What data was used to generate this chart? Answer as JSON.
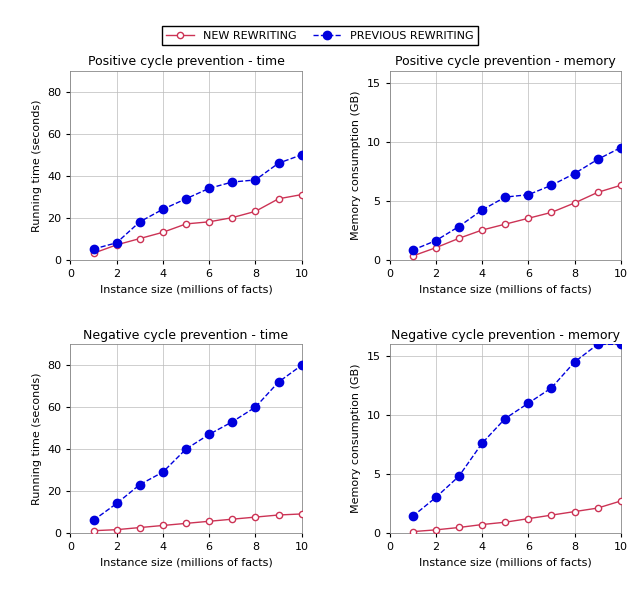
{
  "x": [
    1,
    2,
    3,
    4,
    5,
    6,
    7,
    8,
    9,
    10
  ],
  "pos_time_new": [
    3,
    7,
    10,
    13,
    17,
    18,
    20,
    23,
    29,
    31
  ],
  "pos_time_prev": [
    5,
    8,
    18,
    24,
    29,
    34,
    37,
    38,
    46,
    50
  ],
  "pos_mem_new": [
    0.3,
    1.0,
    1.8,
    2.5,
    3.0,
    3.5,
    4.0,
    4.8,
    5.7,
    6.3
  ],
  "pos_mem_prev": [
    0.8,
    1.6,
    2.8,
    4.2,
    5.3,
    5.5,
    6.3,
    7.3,
    8.5,
    9.5
  ],
  "neg_time_new": [
    1,
    1.5,
    2.5,
    3.5,
    4.5,
    5.5,
    6.5,
    7.5,
    8.5,
    9.0
  ],
  "neg_time_prev": [
    6,
    14,
    23,
    29,
    40,
    47,
    53,
    60,
    72,
    80
  ],
  "neg_mem_new": [
    0.1,
    0.25,
    0.45,
    0.7,
    0.9,
    1.2,
    1.5,
    1.8,
    2.1,
    2.7
  ],
  "neg_mem_prev": [
    1.4,
    3.0,
    4.8,
    7.6,
    9.7,
    11.0,
    12.3,
    14.5,
    16.0,
    16.0
  ],
  "color_new": "#cc3355",
  "color_prev": "#0000dd",
  "titles": [
    "Positive cycle prevention - time",
    "Positive cycle prevention - memory",
    "Negative cycle prevention - time",
    "Negative cycle prevention - memory"
  ],
  "ylabel_time": "Running time (seconds)",
  "ylabel_mem": "Memory consumption (GB)",
  "xlabel": "Instance size (millions of facts)",
  "ylim_time": [
    0,
    90
  ],
  "ylim_mem": [
    0,
    16
  ],
  "yticks_time": [
    0,
    20,
    40,
    60,
    80
  ],
  "yticks_mem": [
    0,
    5,
    10,
    15
  ],
  "xticks": [
    0,
    2,
    4,
    6,
    8,
    10
  ],
  "legend_new": "NEW REWRITING",
  "legend_prev": "PREVIOUS REWRITING",
  "background": "#ffffff",
  "grid_color": "#bbbbbb"
}
